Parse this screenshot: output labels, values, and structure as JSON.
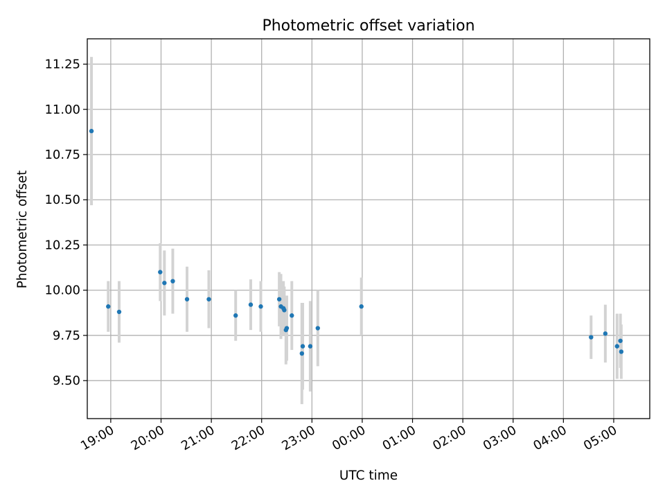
{
  "chart_data": {
    "type": "scatter",
    "title": "Photometric offset variation",
    "xlabel": "UTC time",
    "ylabel": "Photometric offset",
    "x_ticks": [
      "19:00",
      "20:00",
      "21:00",
      "22:00",
      "23:00",
      "00:00",
      "01:00",
      "02:00",
      "03:00",
      "04:00",
      "05:00"
    ],
    "y_ticks": [
      "9.50",
      "9.75",
      "10.00",
      "10.25",
      "10.50",
      "10.75",
      "11.00",
      "11.25"
    ],
    "xlim": [
      "18:32",
      "05:43"
    ],
    "ylim": [
      9.29,
      11.39
    ],
    "grid": true,
    "colors": {
      "point": "#1f77b4",
      "errorbar": "#d3d3d3",
      "grid": "#b0b0b0"
    },
    "series": [
      {
        "points": [
          {
            "x": "18:37",
            "y": 10.88,
            "err": 0.41
          },
          {
            "x": "18:57",
            "y": 9.91,
            "err": 0.14
          },
          {
            "x": "19:10",
            "y": 9.88,
            "err": 0.17
          },
          {
            "x": "19:59",
            "y": 10.1,
            "err": 0.16
          },
          {
            "x": "20:04",
            "y": 10.04,
            "err": 0.18
          },
          {
            "x": "20:14",
            "y": 10.05,
            "err": 0.18
          },
          {
            "x": "20:31",
            "y": 9.95,
            "err": 0.18
          },
          {
            "x": "20:57",
            "y": 9.95,
            "err": 0.16
          },
          {
            "x": "21:29",
            "y": 9.86,
            "err": 0.14
          },
          {
            "x": "21:47",
            "y": 9.92,
            "err": 0.14
          },
          {
            "x": "21:59",
            "y": 9.91,
            "err": 0.14
          },
          {
            "x": "22:21",
            "y": 9.95,
            "err": 0.15
          },
          {
            "x": "22:23",
            "y": 9.91,
            "err": 0.18
          },
          {
            "x": "22:26",
            "y": 9.9,
            "err": 0.15
          },
          {
            "x": "22:27",
            "y": 9.89,
            "err": 0.13
          },
          {
            "x": "22:29",
            "y": 9.78,
            "err": 0.19
          },
          {
            "x": "22:30",
            "y": 9.79,
            "err": 0.18
          },
          {
            "x": "22:36",
            "y": 9.86,
            "err": 0.19
          },
          {
            "x": "22:48",
            "y": 9.65,
            "err": 0.28
          },
          {
            "x": "22:49",
            "y": 9.69,
            "err": 0.24
          },
          {
            "x": "22:58",
            "y": 9.69,
            "err": 0.25
          },
          {
            "x": "23:07",
            "y": 9.79,
            "err": 0.21
          },
          {
            "x": "23:59",
            "y": 9.91,
            "err": 0.16
          },
          {
            "x": "04:33",
            "y": 9.74,
            "err": 0.12
          },
          {
            "x": "04:50",
            "y": 9.76,
            "err": 0.16
          },
          {
            "x": "05:04",
            "y": 9.69,
            "err": 0.18
          },
          {
            "x": "05:08",
            "y": 9.72,
            "err": 0.15
          },
          {
            "x": "05:09",
            "y": 9.66,
            "err": 0.15
          }
        ]
      }
    ]
  }
}
